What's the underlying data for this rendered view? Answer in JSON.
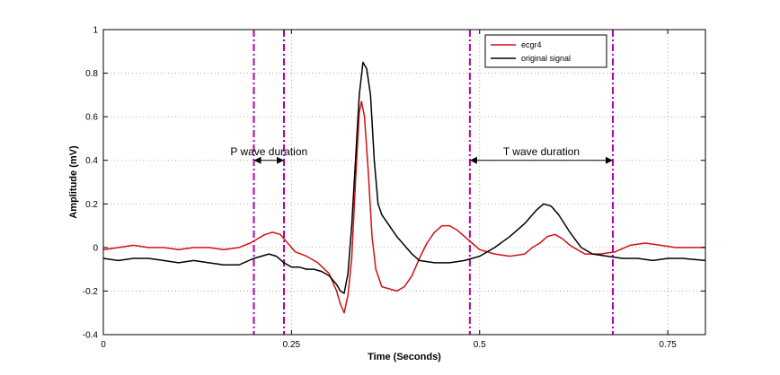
{
  "chart_data": {
    "type": "line",
    "xlabel": "Time (Seconds)",
    "ylabel": "Amplitude (mV)",
    "xlim": [
      0,
      0.8
    ],
    "ylim": [
      -0.4,
      1
    ],
    "x_ticks": [
      0,
      0.25,
      0.5,
      0.75
    ],
    "x_tick_labels": [
      "0",
      "0.25",
      "0.5",
      "0.75"
    ],
    "y_ticks": [
      -0.4,
      -0.2,
      0,
      0.2,
      0.4,
      0.6,
      0.8,
      1
    ],
    "y_tick_labels": [
      "-0.4",
      "-0.2",
      "0",
      "0.2",
      "0.4",
      "0.6",
      "0.8",
      "1"
    ],
    "grid": true,
    "legend_position": "top-right",
    "series": [
      {
        "name": "ecgr4",
        "color": "#d01010",
        "points": [
          [
            0,
            -0.01
          ],
          [
            0.02,
            0.0
          ],
          [
            0.04,
            0.01
          ],
          [
            0.06,
            0.0
          ],
          [
            0.08,
            0.0
          ],
          [
            0.1,
            -0.01
          ],
          [
            0.12,
            0.0
          ],
          [
            0.14,
            0.0
          ],
          [
            0.16,
            -0.01
          ],
          [
            0.18,
            0.0
          ],
          [
            0.195,
            0.02
          ],
          [
            0.205,
            0.04
          ],
          [
            0.215,
            0.06
          ],
          [
            0.225,
            0.07
          ],
          [
            0.235,
            0.06
          ],
          [
            0.245,
            0.02
          ],
          [
            0.255,
            -0.02
          ],
          [
            0.27,
            -0.04
          ],
          [
            0.285,
            -0.07
          ],
          [
            0.3,
            -0.12
          ],
          [
            0.31,
            -0.2
          ],
          [
            0.315,
            -0.26
          ],
          [
            0.32,
            -0.3
          ],
          [
            0.325,
            -0.22
          ],
          [
            0.33,
            -0.05
          ],
          [
            0.335,
            0.3
          ],
          [
            0.34,
            0.62
          ],
          [
            0.343,
            0.67
          ],
          [
            0.347,
            0.6
          ],
          [
            0.352,
            0.35
          ],
          [
            0.357,
            0.05
          ],
          [
            0.362,
            -0.1
          ],
          [
            0.37,
            -0.18
          ],
          [
            0.38,
            -0.19
          ],
          [
            0.39,
            -0.2
          ],
          [
            0.4,
            -0.18
          ],
          [
            0.41,
            -0.13
          ],
          [
            0.42,
            -0.05
          ],
          [
            0.43,
            0.02
          ],
          [
            0.44,
            0.07
          ],
          [
            0.45,
            0.1
          ],
          [
            0.46,
            0.1
          ],
          [
            0.47,
            0.08
          ],
          [
            0.48,
            0.05
          ],
          [
            0.49,
            0.02
          ],
          [
            0.5,
            -0.01
          ],
          [
            0.52,
            -0.03
          ],
          [
            0.54,
            -0.04
          ],
          [
            0.56,
            -0.03
          ],
          [
            0.57,
            0.0
          ],
          [
            0.58,
            0.02
          ],
          [
            0.59,
            0.05
          ],
          [
            0.6,
            0.06
          ],
          [
            0.61,
            0.04
          ],
          [
            0.62,
            0.01
          ],
          [
            0.63,
            -0.01
          ],
          [
            0.64,
            -0.03
          ],
          [
            0.66,
            -0.03
          ],
          [
            0.68,
            -0.02
          ],
          [
            0.7,
            0.01
          ],
          [
            0.72,
            0.02
          ],
          [
            0.74,
            0.01
          ],
          [
            0.76,
            0.0
          ],
          [
            0.78,
            0.0
          ],
          [
            0.8,
            0.0
          ]
        ]
      },
      {
        "name": "original signal",
        "color": "#000000",
        "points": [
          [
            0,
            -0.05
          ],
          [
            0.02,
            -0.06
          ],
          [
            0.04,
            -0.05
          ],
          [
            0.06,
            -0.05
          ],
          [
            0.08,
            -0.06
          ],
          [
            0.1,
            -0.07
          ],
          [
            0.12,
            -0.06
          ],
          [
            0.14,
            -0.07
          ],
          [
            0.16,
            -0.08
          ],
          [
            0.18,
            -0.08
          ],
          [
            0.2,
            -0.05
          ],
          [
            0.21,
            -0.04
          ],
          [
            0.22,
            -0.03
          ],
          [
            0.23,
            -0.04
          ],
          [
            0.24,
            -0.07
          ],
          [
            0.25,
            -0.09
          ],
          [
            0.26,
            -0.09
          ],
          [
            0.27,
            -0.1
          ],
          [
            0.28,
            -0.1
          ],
          [
            0.29,
            -0.11
          ],
          [
            0.3,
            -0.13
          ],
          [
            0.31,
            -0.17
          ],
          [
            0.315,
            -0.2
          ],
          [
            0.32,
            -0.21
          ],
          [
            0.325,
            -0.12
          ],
          [
            0.33,
            0.1
          ],
          [
            0.335,
            0.4
          ],
          [
            0.34,
            0.7
          ],
          [
            0.345,
            0.85
          ],
          [
            0.35,
            0.82
          ],
          [
            0.355,
            0.7
          ],
          [
            0.36,
            0.4
          ],
          [
            0.365,
            0.2
          ],
          [
            0.37,
            0.15
          ],
          [
            0.38,
            0.1
          ],
          [
            0.39,
            0.05
          ],
          [
            0.4,
            0.01
          ],
          [
            0.41,
            -0.03
          ],
          [
            0.42,
            -0.06
          ],
          [
            0.44,
            -0.07
          ],
          [
            0.46,
            -0.07
          ],
          [
            0.48,
            -0.06
          ],
          [
            0.5,
            -0.04
          ],
          [
            0.52,
            0.0
          ],
          [
            0.54,
            0.05
          ],
          [
            0.56,
            0.11
          ],
          [
            0.575,
            0.17
          ],
          [
            0.585,
            0.2
          ],
          [
            0.595,
            0.19
          ],
          [
            0.605,
            0.15
          ],
          [
            0.62,
            0.07
          ],
          [
            0.635,
            0.0
          ],
          [
            0.65,
            -0.03
          ],
          [
            0.67,
            -0.04
          ],
          [
            0.69,
            -0.05
          ],
          [
            0.71,
            -0.05
          ],
          [
            0.73,
            -0.06
          ],
          [
            0.75,
            -0.05
          ],
          [
            0.77,
            -0.05
          ],
          [
            0.8,
            -0.06
          ]
        ]
      }
    ],
    "vertical_markers": [
      0.2,
      0.24,
      0.487,
      0.677
    ],
    "vertical_marker_color": "#b000b0",
    "annotations": [
      {
        "text": "P wave duration",
        "arrow_from": 0.2,
        "arrow_to": 0.24,
        "y": 0.4,
        "text_x": 0.22,
        "text_y": 0.44
      },
      {
        "text": "T wave duration",
        "arrow_from": 0.487,
        "arrow_to": 0.677,
        "y": 0.4,
        "text_x": 0.582,
        "text_y": 0.44
      }
    ]
  }
}
